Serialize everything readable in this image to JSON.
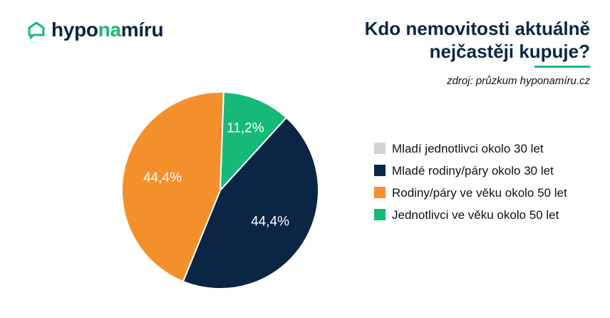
{
  "brand": {
    "prefix": "hypo",
    "accent": "na",
    "suffix": "míru",
    "icon": "home-chat-icon"
  },
  "title_lines": [
    "Kdo nemovitosti aktuálně",
    "nejčastěji kupuje?"
  ],
  "source": "zdroj: průzkum hyponamíru.cz",
  "colors": {
    "navy": "#0b2545",
    "green": "#17b978",
    "orange": "#f4902c",
    "grey": "#d4d4d4"
  },
  "chart_data": {
    "type": "pie",
    "title": "Kdo nemovitosti aktuálně nejčastěji kupuje?",
    "slices": [
      {
        "label": "Mladí jednotlivci okolo 30 let",
        "value": 0.0,
        "display": "",
        "color": "#d4d4d4"
      },
      {
        "label": "Mladé rodiny/páry okolo 30 let",
        "value": 44.4,
        "display": "44,4%",
        "color": "#0b2545"
      },
      {
        "label": "Rodiny/páry ve věku okolo 50 let",
        "value": 44.4,
        "display": "44,4%",
        "color": "#f4902c"
      },
      {
        "label": "Jednotlivci ve věku okolo 50 let",
        "value": 11.2,
        "display": "11,2%",
        "color": "#17b978"
      }
    ],
    "legend_position": "right"
  }
}
